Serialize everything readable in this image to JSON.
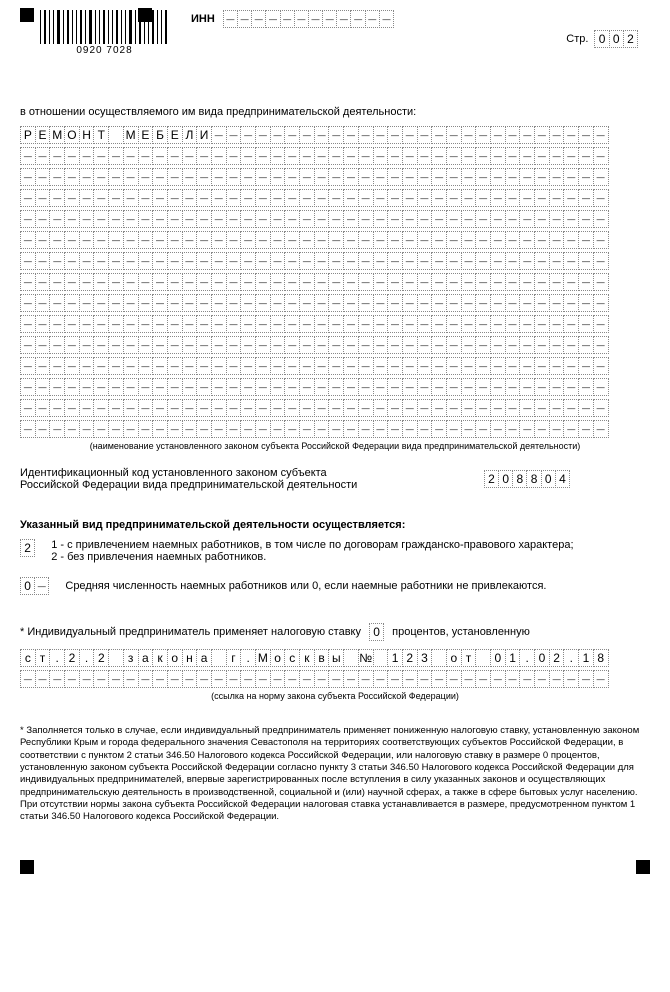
{
  "barcode_number": "0920 7028",
  "header": {
    "inn_label": "ИНН",
    "inn_cells": [
      "-",
      "-",
      "-",
      "-",
      "-",
      "-",
      "-",
      "-",
      "-",
      "-",
      "-",
      "-"
    ],
    "str_label": "Стр.",
    "str_cells": [
      "0",
      "0",
      "2"
    ]
  },
  "activity_label": "в отношении осуществляемого им вида предпринимательской деятельности:",
  "activity_name_chars": [
    "Р",
    "Е",
    "М",
    "О",
    "Н",
    "Т",
    "",
    "М",
    "Е",
    "Б",
    "Е",
    "Л",
    "И",
    "-",
    "-",
    "-",
    "-",
    "-",
    "-",
    "-",
    "-",
    "-",
    "-",
    "-",
    "-",
    "-",
    "-",
    "-",
    "-",
    "-",
    "-",
    "-",
    "-",
    "-",
    "-",
    "-",
    "-",
    "-",
    "-",
    "-"
  ],
  "activity_caption": "(наименование установленного законом субъекта Российской Федерации вида предпринимательской деятельности)",
  "id_code_label_1": "Идентификационный код установленного законом субъекта",
  "id_code_label_2": "Российской Федерации вида предпринимательской деятельности",
  "id_code_cells": [
    "2",
    "0",
    "8",
    "8",
    "0",
    "4"
  ],
  "workers_heading": "Указанный вид предпринимательской деятельности осуществляется:",
  "workers_flag": "2",
  "opt1": "1 - с привлечением наемных работников, в том числе по договорам гражданско-правового характера;",
  "opt2": "2 - без привлечения наемных работников.",
  "avg_cells": [
    "0",
    "-"
  ],
  "avg_text": "Средняя численность наемных работников или 0, если наемные работники не привлекаются.",
  "tax_label_pre": "* Индивидуальный предприниматель применяет налоговую ставку",
  "tax_rate": "0",
  "tax_label_post": "процентов, установленную",
  "tax_law_chars_row1": [
    "с",
    "т",
    ".",
    "2",
    ".",
    "2",
    "",
    "з",
    "а",
    "к",
    "о",
    "н",
    "а",
    "",
    "г",
    ".",
    "М",
    "о",
    "с",
    "к",
    "в",
    "ы",
    "",
    "№",
    "",
    "1",
    "2",
    "3",
    "",
    "о",
    "т",
    "",
    "0",
    "1",
    ".",
    "0",
    "2",
    ".",
    "1",
    "8"
  ],
  "tax_law_caption": "(ссылка на норму закона субъекта Российской Федерации)",
  "footnote": "* Заполняется только в случае, если индивидуальный предприниматель применяет пониженную налоговую ставку, установленную законом Республики Крым и города федерального значения Севастополя на территориях соответствующих субъектов Российской Федерации, в соответствии с пунктом 2 статьи 346.50 Налогового кодекса Российской Федерации, или налоговую ставку в размере 0 процентов, установленную законом субъекта Российской Федерации согласно пункту 3 статьи 346.50 Налогового кодекса Российской Федерации для индивидуальных предпринимателей, впервые зарегистрированных после вступления в силу указанных законов и осуществляющих предпринимательскую деятельность в производственной, социальной и (или) научной сферах, а также в сфере бытовых услуг населению. При отсутствии нормы закона субъекта Российской Федерации налоговая ставка устанавливается в размере, предусмотренном пунктом 1 статьи 346.50 Налогового кодекса Российской Федерации.",
  "barcode_widths": [
    1,
    2,
    1,
    1,
    3,
    1,
    2,
    1,
    1,
    2,
    1,
    3,
    1,
    1,
    2,
    1,
    1,
    2,
    1,
    1,
    3,
    1,
    2,
    1,
    1,
    2,
    1,
    1,
    2
  ]
}
